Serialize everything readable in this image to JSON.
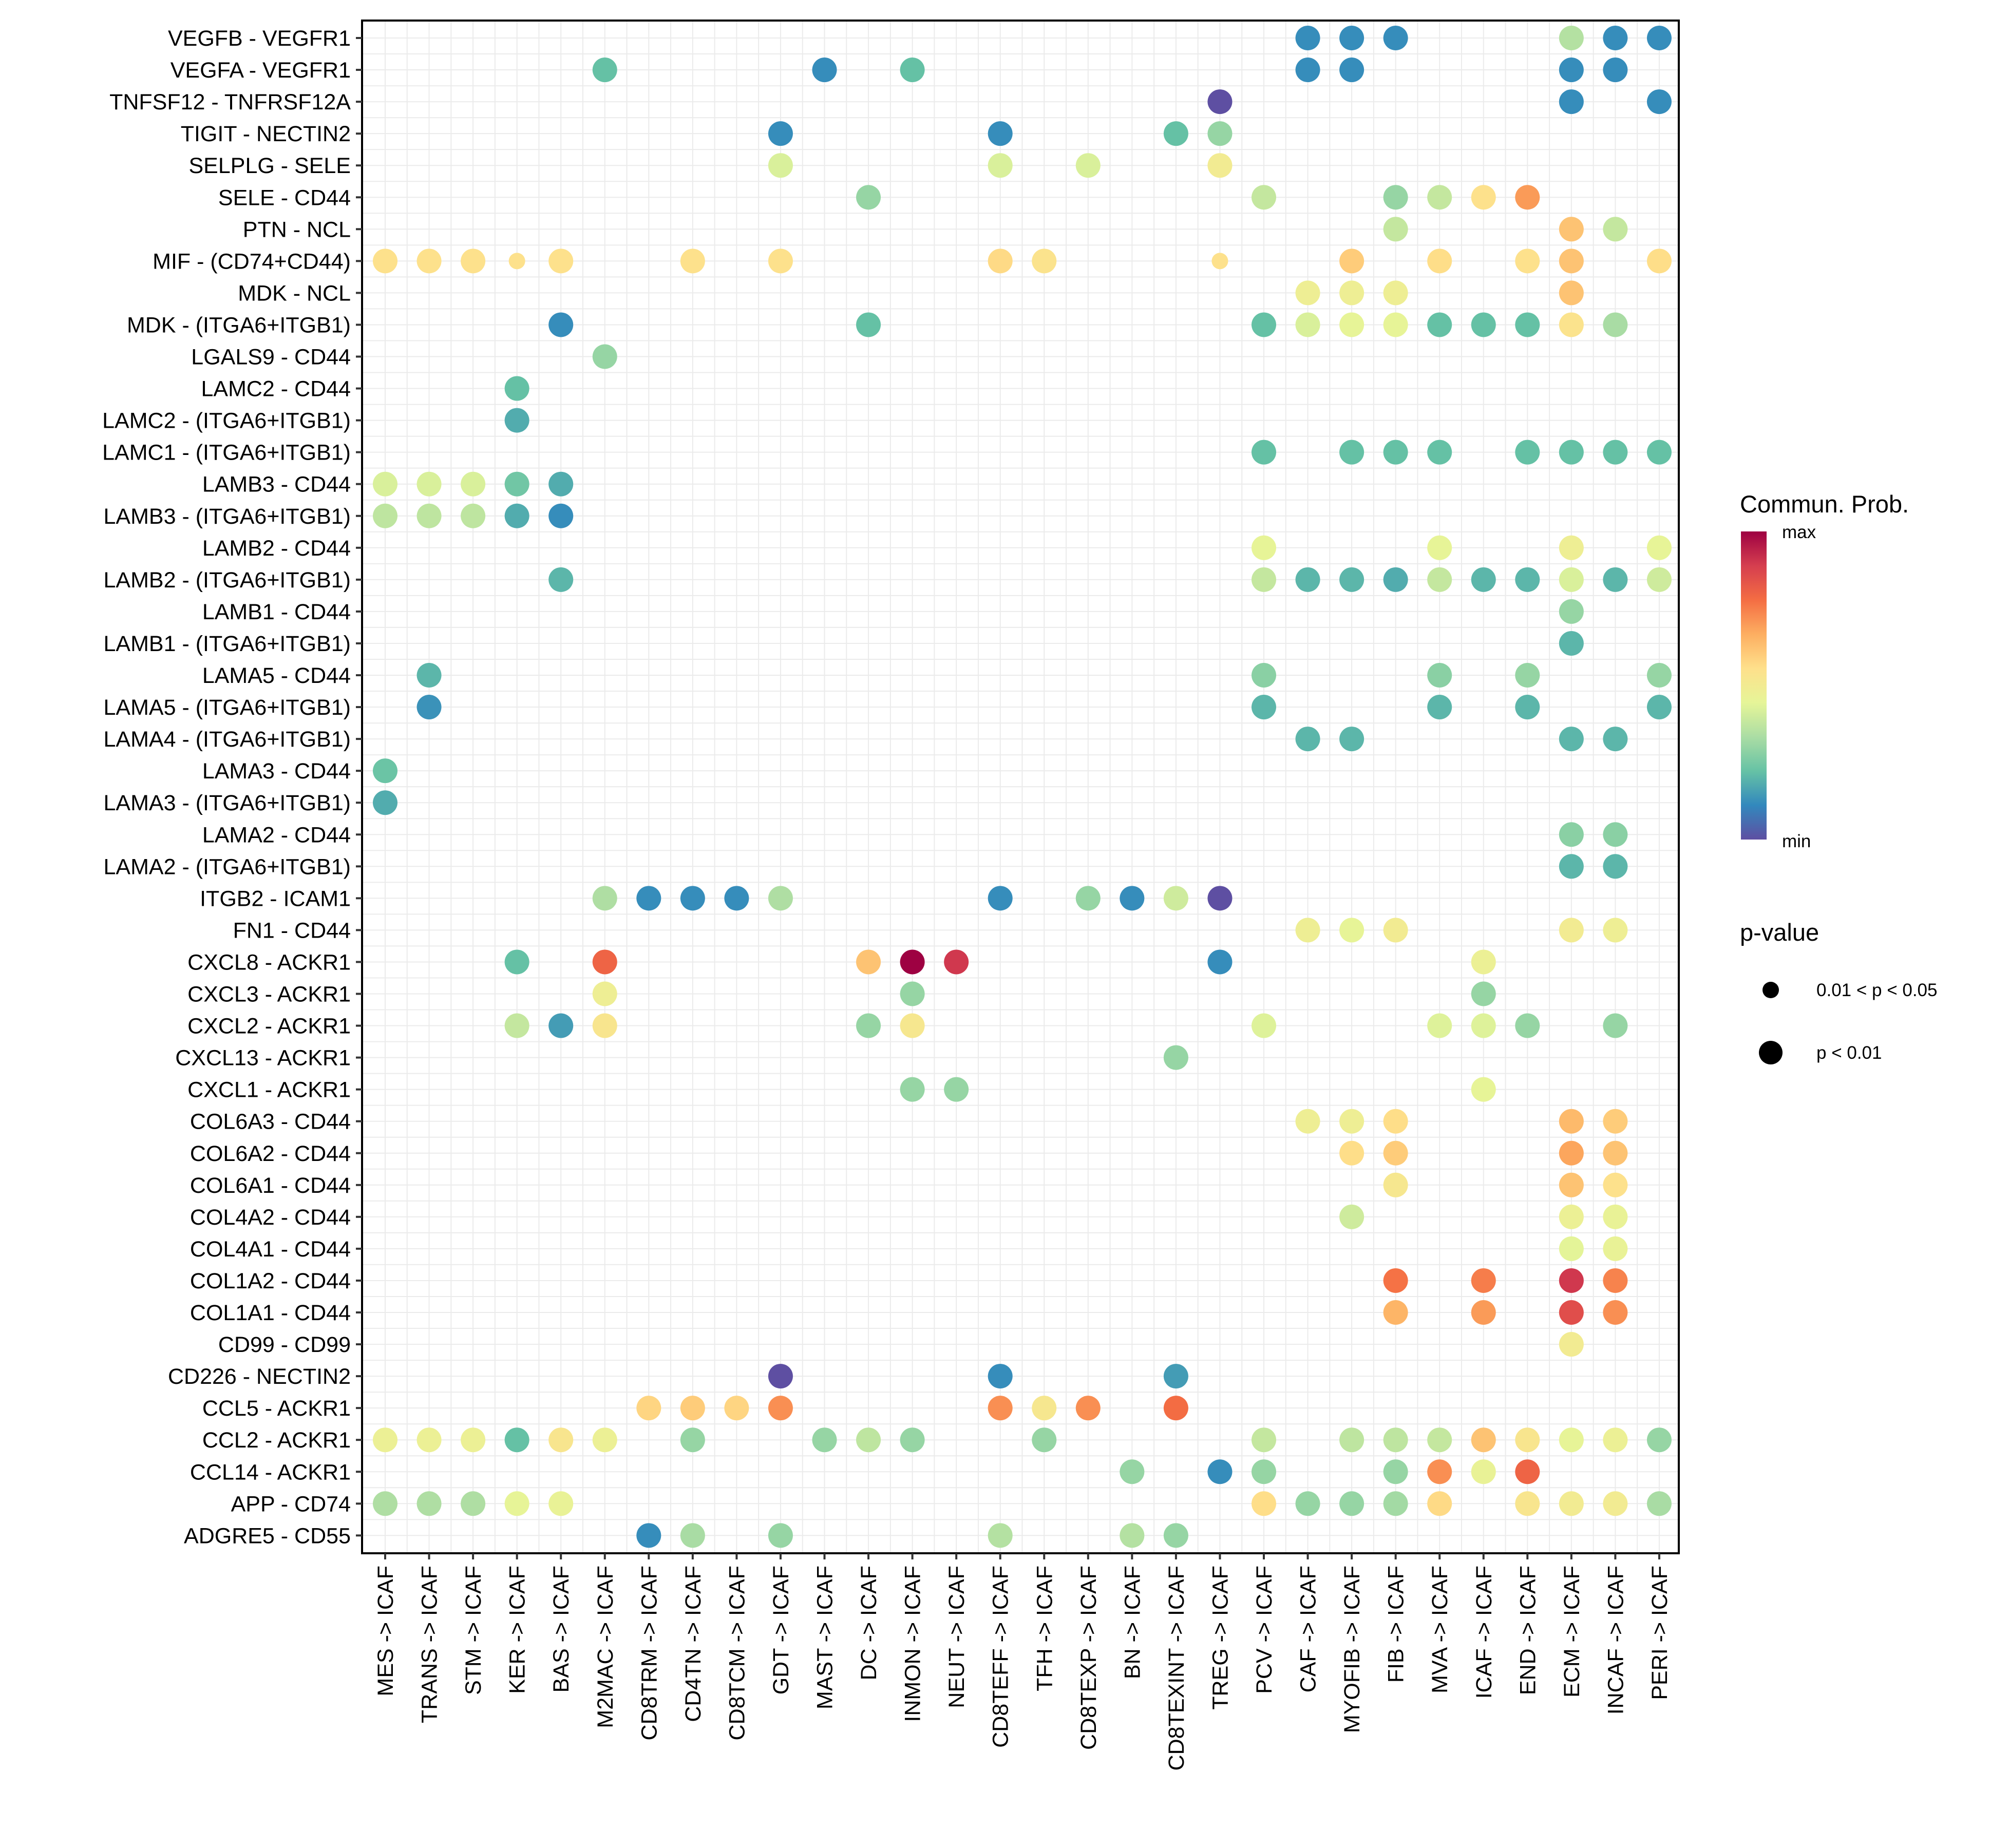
{
  "chart_data": {
    "type": "scatter",
    "subtype": "bubble-dotplot",
    "title": "",
    "xlabel": "",
    "ylabel": "",
    "grid": true,
    "legend_position": "right",
    "x_categories": [
      "MES -> ICAF",
      "TRANS -> ICAF",
      "STM -> ICAF",
      "KER -> ICAF",
      "BAS -> ICAF",
      "M2MAC -> ICAF",
      "CD8TRM -> ICAF",
      "CD4TN -> ICAF",
      "CD8TCM -> ICAF",
      "GDT -> ICAF",
      "MAST -> ICAF",
      "DC -> ICAF",
      "INMON -> ICAF",
      "NEUT -> ICAF",
      "CD8TEFF -> ICAF",
      "TFH -> ICAF",
      "CD8TEXP -> ICAF",
      "BN -> ICAF",
      "CD8TEXINT -> ICAF",
      "TREG -> ICAF",
      "PCV -> ICAF",
      "CAF -> ICAF",
      "MYOFIB -> ICAF",
      "FIB -> ICAF",
      "MVA -> ICAF",
      "ICAF -> ICAF",
      "END -> ICAF",
      "ECM -> ICAF",
      "INCAF -> ICAF",
      "PERI -> ICAF"
    ],
    "y_categories": [
      "VEGFB - VEGFR1",
      "VEGFA - VEGFR1",
      "TNFSF12 - TNFRSF12A",
      "TIGIT - NECTIN2",
      "SELPLG - SELE",
      "SELE - CD44",
      "PTN - NCL",
      "MIF - (CD74+CD44)",
      "MDK - NCL",
      "MDK - (ITGA6+ITGB1)",
      "LGALS9 - CD44",
      "LAMC2 - CD44",
      "LAMC2 - (ITGA6+ITGB1)",
      "LAMC1 - (ITGA6+ITGB1)",
      "LAMB3 - CD44",
      "LAMB3 - (ITGA6+ITGB1)",
      "LAMB2 - CD44",
      "LAMB2 - (ITGA6+ITGB1)",
      "LAMB1 - CD44",
      "LAMB1 - (ITGA6+ITGB1)",
      "LAMA5 - CD44",
      "LAMA5 - (ITGA6+ITGB1)",
      "LAMA4 - (ITGA6+ITGB1)",
      "LAMA3 - CD44",
      "LAMA3 - (ITGA6+ITGB1)",
      "LAMA2 - CD44",
      "LAMA2 - (ITGA6+ITGB1)",
      "ITGB2 - ICAM1",
      "FN1 - CD44",
      "CXCL8 - ACKR1",
      "CXCL3 - ACKR1",
      "CXCL2 - ACKR1",
      "CXCL13 - ACKR1",
      "CXCL1 - ACKR1",
      "COL6A3 - CD44",
      "COL6A2 - CD44",
      "COL6A1 - CD44",
      "COL4A2 - CD44",
      "COL4A1 - CD44",
      "COL1A2 - CD44",
      "COL1A1 - CD44",
      "CD99 - CD99",
      "CD226 - NECTIN2",
      "CCL5 - ACKR1",
      "CCL2 - ACKR1",
      "CCL14 - ACKR1",
      "APP - CD74",
      "ADGRE5 - CD55"
    ],
    "value_scale": {
      "name": "Commun. Prob.",
      "min_label": "min",
      "max_label": "max",
      "range": [
        0,
        1
      ],
      "palette": "Spectral",
      "colors": [
        "#5E4FA2",
        "#3288BD",
        "#66C2A5",
        "#ABDDA4",
        "#E6F598",
        "#FEE08B",
        "#FDAE61",
        "#F46D43",
        "#D53E4F",
        "#9E0142"
      ]
    },
    "size_legend": {
      "title": "p-value",
      "levels": [
        {
          "label": "0.01 < p < 0.05",
          "code": "s"
        },
        {
          "label": "p < 0.01",
          "code": "l"
        }
      ]
    },
    "points_note": "each point: [row index into y_categories, column index into x_categories, relative commun. prob (0=min,1=max), p-value size code]",
    "points": [
      [
        0,
        21,
        0.12,
        "l"
      ],
      [
        0,
        22,
        0.12,
        "l"
      ],
      [
        0,
        23,
        0.12,
        "l"
      ],
      [
        0,
        27,
        0.35,
        "l"
      ],
      [
        0,
        28,
        0.12,
        "l"
      ],
      [
        0,
        29,
        0.12,
        "l"
      ],
      [
        1,
        5,
        0.22,
        "l"
      ],
      [
        1,
        10,
        0.12,
        "l"
      ],
      [
        1,
        12,
        0.22,
        "l"
      ],
      [
        1,
        21,
        0.12,
        "l"
      ],
      [
        1,
        22,
        0.12,
        "l"
      ],
      [
        1,
        27,
        0.12,
        "l"
      ],
      [
        1,
        28,
        0.12,
        "l"
      ],
      [
        2,
        19,
        0.0,
        "l"
      ],
      [
        2,
        27,
        0.12,
        "l"
      ],
      [
        2,
        29,
        0.12,
        "l"
      ],
      [
        3,
        9,
        0.12,
        "l"
      ],
      [
        3,
        14,
        0.12,
        "l"
      ],
      [
        3,
        18,
        0.22,
        "l"
      ],
      [
        3,
        19,
        0.3,
        "l"
      ],
      [
        4,
        9,
        0.42,
        "l"
      ],
      [
        4,
        14,
        0.42,
        "l"
      ],
      [
        4,
        16,
        0.42,
        "l"
      ],
      [
        4,
        19,
        0.5,
        "l"
      ],
      [
        5,
        11,
        0.3,
        "l"
      ],
      [
        5,
        20,
        0.38,
        "l"
      ],
      [
        5,
        23,
        0.3,
        "l"
      ],
      [
        5,
        24,
        0.38,
        "l"
      ],
      [
        5,
        25,
        0.55,
        "l"
      ],
      [
        5,
        26,
        0.7,
        "l"
      ],
      [
        6,
        23,
        0.38,
        "l"
      ],
      [
        6,
        27,
        0.62,
        "l"
      ],
      [
        6,
        28,
        0.38,
        "l"
      ],
      [
        7,
        0,
        0.55,
        "l"
      ],
      [
        7,
        1,
        0.55,
        "l"
      ],
      [
        7,
        2,
        0.55,
        "l"
      ],
      [
        7,
        3,
        0.55,
        "s"
      ],
      [
        7,
        4,
        0.55,
        "l"
      ],
      [
        7,
        7,
        0.55,
        "l"
      ],
      [
        7,
        9,
        0.55,
        "l"
      ],
      [
        7,
        14,
        0.57,
        "l"
      ],
      [
        7,
        15,
        0.54,
        "l"
      ],
      [
        7,
        19,
        0.55,
        "s"
      ],
      [
        7,
        22,
        0.6,
        "l"
      ],
      [
        7,
        24,
        0.56,
        "l"
      ],
      [
        7,
        26,
        0.55,
        "l"
      ],
      [
        7,
        27,
        0.62,
        "l"
      ],
      [
        7,
        29,
        0.56,
        "l"
      ],
      [
        8,
        21,
        0.48,
        "l"
      ],
      [
        8,
        22,
        0.48,
        "l"
      ],
      [
        8,
        23,
        0.48,
        "l"
      ],
      [
        8,
        27,
        0.62,
        "l"
      ],
      [
        9,
        4,
        0.12,
        "l"
      ],
      [
        9,
        11,
        0.22,
        "l"
      ],
      [
        9,
        20,
        0.22,
        "l"
      ],
      [
        9,
        21,
        0.42,
        "l"
      ],
      [
        9,
        22,
        0.45,
        "l"
      ],
      [
        9,
        23,
        0.45,
        "l"
      ],
      [
        9,
        24,
        0.22,
        "l"
      ],
      [
        9,
        25,
        0.22,
        "l"
      ],
      [
        9,
        26,
        0.22,
        "l"
      ],
      [
        9,
        27,
        0.54,
        "l"
      ],
      [
        9,
        28,
        0.33,
        "l"
      ],
      [
        10,
        5,
        0.3,
        "l"
      ],
      [
        11,
        3,
        0.22,
        "l"
      ],
      [
        12,
        3,
        0.18,
        "l"
      ],
      [
        13,
        20,
        0.22,
        "l"
      ],
      [
        13,
        22,
        0.22,
        "l"
      ],
      [
        13,
        23,
        0.22,
        "l"
      ],
      [
        13,
        24,
        0.22,
        "l"
      ],
      [
        13,
        26,
        0.22,
        "l"
      ],
      [
        13,
        27,
        0.22,
        "l"
      ],
      [
        13,
        28,
        0.22,
        "l"
      ],
      [
        13,
        29,
        0.22,
        "l"
      ],
      [
        14,
        0,
        0.42,
        "l"
      ],
      [
        14,
        1,
        0.42,
        "l"
      ],
      [
        14,
        2,
        0.42,
        "l"
      ],
      [
        14,
        3,
        0.24,
        "l"
      ],
      [
        14,
        4,
        0.18,
        "l"
      ],
      [
        15,
        0,
        0.37,
        "l"
      ],
      [
        15,
        1,
        0.37,
        "l"
      ],
      [
        15,
        2,
        0.37,
        "l"
      ],
      [
        15,
        3,
        0.18,
        "l"
      ],
      [
        15,
        4,
        0.12,
        "l"
      ],
      [
        16,
        20,
        0.45,
        "l"
      ],
      [
        16,
        24,
        0.45,
        "l"
      ],
      [
        16,
        27,
        0.48,
        "l"
      ],
      [
        16,
        29,
        0.45,
        "l"
      ],
      [
        17,
        4,
        0.2,
        "l"
      ],
      [
        17,
        20,
        0.38,
        "l"
      ],
      [
        17,
        21,
        0.2,
        "l"
      ],
      [
        17,
        22,
        0.2,
        "l"
      ],
      [
        17,
        23,
        0.18,
        "l"
      ],
      [
        17,
        24,
        0.38,
        "l"
      ],
      [
        17,
        25,
        0.2,
        "l"
      ],
      [
        17,
        26,
        0.2,
        "l"
      ],
      [
        17,
        27,
        0.42,
        "l"
      ],
      [
        17,
        28,
        0.2,
        "l"
      ],
      [
        17,
        29,
        0.4,
        "l"
      ],
      [
        18,
        27,
        0.3,
        "l"
      ],
      [
        19,
        27,
        0.2,
        "l"
      ],
      [
        20,
        1,
        0.2,
        "l"
      ],
      [
        20,
        20,
        0.28,
        "l"
      ],
      [
        20,
        24,
        0.28,
        "l"
      ],
      [
        20,
        26,
        0.3,
        "l"
      ],
      [
        20,
        29,
        0.3,
        "l"
      ],
      [
        21,
        1,
        0.13,
        "l"
      ],
      [
        21,
        20,
        0.2,
        "l"
      ],
      [
        21,
        24,
        0.2,
        "l"
      ],
      [
        21,
        26,
        0.2,
        "l"
      ],
      [
        21,
        29,
        0.2,
        "l"
      ],
      [
        22,
        21,
        0.2,
        "l"
      ],
      [
        22,
        22,
        0.2,
        "l"
      ],
      [
        22,
        27,
        0.2,
        "l"
      ],
      [
        22,
        28,
        0.2,
        "l"
      ],
      [
        23,
        0,
        0.23,
        "l"
      ],
      [
        24,
        0,
        0.18,
        "l"
      ],
      [
        25,
        27,
        0.28,
        "l"
      ],
      [
        25,
        28,
        0.28,
        "l"
      ],
      [
        26,
        27,
        0.2,
        "l"
      ],
      [
        26,
        28,
        0.2,
        "l"
      ],
      [
        27,
        5,
        0.34,
        "l"
      ],
      [
        27,
        6,
        0.12,
        "l"
      ],
      [
        27,
        7,
        0.12,
        "l"
      ],
      [
        27,
        8,
        0.12,
        "l"
      ],
      [
        27,
        9,
        0.34,
        "l"
      ],
      [
        27,
        14,
        0.12,
        "l"
      ],
      [
        27,
        16,
        0.3,
        "l"
      ],
      [
        27,
        17,
        0.12,
        "l"
      ],
      [
        27,
        18,
        0.4,
        "l"
      ],
      [
        27,
        19,
        0.0,
        "l"
      ],
      [
        28,
        21,
        0.48,
        "l"
      ],
      [
        28,
        22,
        0.45,
        "l"
      ],
      [
        28,
        23,
        0.5,
        "l"
      ],
      [
        28,
        27,
        0.5,
        "l"
      ],
      [
        28,
        28,
        0.48,
        "l"
      ],
      [
        29,
        3,
        0.22,
        "l"
      ],
      [
        29,
        5,
        0.8,
        "l"
      ],
      [
        29,
        11,
        0.62,
        "l"
      ],
      [
        29,
        12,
        1.0,
        "l"
      ],
      [
        29,
        13,
        0.9,
        "l"
      ],
      [
        29,
        19,
        0.12,
        "l"
      ],
      [
        29,
        25,
        0.47,
        "l"
      ],
      [
        30,
        5,
        0.48,
        "l"
      ],
      [
        30,
        12,
        0.3,
        "l"
      ],
      [
        30,
        25,
        0.3,
        "l"
      ],
      [
        31,
        3,
        0.38,
        "l"
      ],
      [
        31,
        4,
        0.15,
        "l"
      ],
      [
        31,
        5,
        0.53,
        "l"
      ],
      [
        31,
        11,
        0.3,
        "l"
      ],
      [
        31,
        12,
        0.52,
        "l"
      ],
      [
        31,
        20,
        0.43,
        "l"
      ],
      [
        31,
        24,
        0.43,
        "l"
      ],
      [
        31,
        25,
        0.43,
        "l"
      ],
      [
        31,
        26,
        0.3,
        "l"
      ],
      [
        31,
        28,
        0.3,
        "l"
      ],
      [
        32,
        18,
        0.3,
        "l"
      ],
      [
        33,
        12,
        0.3,
        "l"
      ],
      [
        33,
        13,
        0.3,
        "l"
      ],
      [
        33,
        25,
        0.45,
        "l"
      ],
      [
        34,
        21,
        0.48,
        "l"
      ],
      [
        34,
        22,
        0.48,
        "l"
      ],
      [
        34,
        23,
        0.56,
        "l"
      ],
      [
        34,
        27,
        0.64,
        "l"
      ],
      [
        34,
        28,
        0.6,
        "l"
      ],
      [
        35,
        22,
        0.56,
        "l"
      ],
      [
        35,
        23,
        0.6,
        "l"
      ],
      [
        35,
        27,
        0.68,
        "l"
      ],
      [
        35,
        28,
        0.62,
        "l"
      ],
      [
        36,
        23,
        0.52,
        "l"
      ],
      [
        36,
        27,
        0.62,
        "l"
      ],
      [
        36,
        28,
        0.55,
        "l"
      ],
      [
        37,
        22,
        0.4,
        "l"
      ],
      [
        37,
        27,
        0.47,
        "l"
      ],
      [
        37,
        28,
        0.46,
        "l"
      ],
      [
        38,
        27,
        0.44,
        "l"
      ],
      [
        38,
        28,
        0.46,
        "l"
      ],
      [
        39,
        23,
        0.77,
        "l"
      ],
      [
        39,
        25,
        0.75,
        "l"
      ],
      [
        39,
        27,
        0.9,
        "l"
      ],
      [
        39,
        28,
        0.74,
        "l"
      ],
      [
        40,
        23,
        0.65,
        "l"
      ],
      [
        40,
        25,
        0.7,
        "l"
      ],
      [
        40,
        27,
        0.85,
        "l"
      ],
      [
        40,
        28,
        0.72,
        "l"
      ],
      [
        41,
        27,
        0.5,
        "l"
      ],
      [
        42,
        9,
        0.0,
        "l"
      ],
      [
        42,
        14,
        0.12,
        "l"
      ],
      [
        42,
        18,
        0.15,
        "l"
      ],
      [
        43,
        6,
        0.58,
        "l"
      ],
      [
        43,
        7,
        0.6,
        "l"
      ],
      [
        43,
        8,
        0.58,
        "l"
      ],
      [
        43,
        9,
        0.72,
        "l"
      ],
      [
        43,
        14,
        0.72,
        "l"
      ],
      [
        43,
        15,
        0.52,
        "l"
      ],
      [
        43,
        16,
        0.72,
        "l"
      ],
      [
        43,
        18,
        0.78,
        "l"
      ],
      [
        44,
        0,
        0.47,
        "l"
      ],
      [
        44,
        1,
        0.47,
        "l"
      ],
      [
        44,
        2,
        0.47,
        "l"
      ],
      [
        44,
        3,
        0.22,
        "l"
      ],
      [
        44,
        4,
        0.53,
        "l"
      ],
      [
        44,
        5,
        0.47,
        "l"
      ],
      [
        44,
        7,
        0.3,
        "l"
      ],
      [
        44,
        10,
        0.3,
        "l"
      ],
      [
        44,
        11,
        0.37,
        "l"
      ],
      [
        44,
        12,
        0.3,
        "l"
      ],
      [
        44,
        15,
        0.3,
        "l"
      ],
      [
        44,
        20,
        0.38,
        "l"
      ],
      [
        44,
        22,
        0.37,
        "l"
      ],
      [
        44,
        23,
        0.37,
        "l"
      ],
      [
        44,
        24,
        0.38,
        "l"
      ],
      [
        44,
        25,
        0.62,
        "l"
      ],
      [
        44,
        26,
        0.53,
        "l"
      ],
      [
        44,
        27,
        0.45,
        "l"
      ],
      [
        44,
        28,
        0.47,
        "l"
      ],
      [
        44,
        29,
        0.3,
        "l"
      ],
      [
        45,
        17,
        0.3,
        "l"
      ],
      [
        45,
        19,
        0.12,
        "l"
      ],
      [
        45,
        20,
        0.3,
        "l"
      ],
      [
        45,
        23,
        0.3,
        "l"
      ],
      [
        45,
        24,
        0.72,
        "l"
      ],
      [
        45,
        25,
        0.46,
        "l"
      ],
      [
        45,
        26,
        0.8,
        "l"
      ],
      [
        46,
        0,
        0.34,
        "l"
      ],
      [
        46,
        1,
        0.34,
        "l"
      ],
      [
        46,
        2,
        0.34,
        "l"
      ],
      [
        46,
        3,
        0.45,
        "l"
      ],
      [
        46,
        4,
        0.46,
        "l"
      ],
      [
        46,
        20,
        0.56,
        "l"
      ],
      [
        46,
        21,
        0.3,
        "l"
      ],
      [
        46,
        22,
        0.3,
        "l"
      ],
      [
        46,
        23,
        0.32,
        "l"
      ],
      [
        46,
        24,
        0.57,
        "l"
      ],
      [
        46,
        26,
        0.53,
        "l"
      ],
      [
        46,
        27,
        0.5,
        "l"
      ],
      [
        46,
        28,
        0.5,
        "l"
      ],
      [
        46,
        29,
        0.33,
        "l"
      ],
      [
        47,
        6,
        0.12,
        "l"
      ],
      [
        47,
        7,
        0.33,
        "l"
      ],
      [
        47,
        9,
        0.3,
        "l"
      ],
      [
        47,
        14,
        0.35,
        "l"
      ],
      [
        47,
        17,
        0.35,
        "l"
      ],
      [
        47,
        18,
        0.3,
        "l"
      ]
    ]
  }
}
